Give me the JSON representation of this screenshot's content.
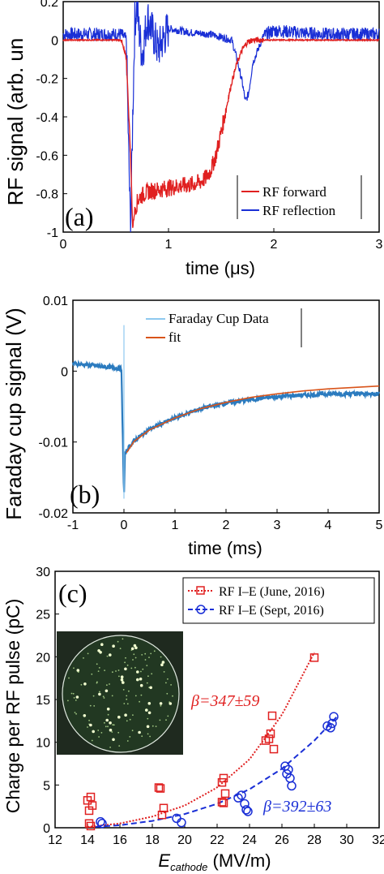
{
  "chart_data": [
    {
      "type": "line",
      "panel_label": "(a)",
      "ylabel": "RF signal (arb. un",
      "xlabel": "time (μs)",
      "xlim": [
        0,
        3
      ],
      "ylim": [
        -1,
        0.2
      ],
      "xticks": [
        "0",
        "1",
        "2",
        "3"
      ],
      "yticks": [
        "0.2",
        "0",
        "-0.2",
        "-0.4",
        "-0.6",
        "-0.8",
        "-1"
      ],
      "grid": false,
      "legend_position": "bottom-right",
      "series": [
        {
          "name": "RF forward",
          "color": "#e02020",
          "x": [
            0,
            0.55,
            0.6,
            0.64,
            0.66,
            0.68,
            0.72,
            0.8,
            0.9,
            1.0,
            1.1,
            1.2,
            1.3,
            1.35,
            1.4,
            1.45,
            1.5,
            1.55,
            1.6,
            1.65,
            1.7,
            1.75,
            1.8,
            1.9,
            2.0,
            3.0
          ],
          "y": [
            0,
            0,
            -0.1,
            -0.6,
            -0.98,
            -0.88,
            -0.82,
            -0.79,
            -0.78,
            -0.77,
            -0.76,
            -0.755,
            -0.74,
            -0.72,
            -0.68,
            -0.6,
            -0.48,
            -0.35,
            -0.22,
            -0.12,
            -0.05,
            -0.01,
            0,
            0,
            0,
            0
          ]
        },
        {
          "name": "RF reflection",
          "color": "#1a2fd6",
          "x": [
            0,
            0.55,
            0.6,
            0.62,
            0.64,
            0.66,
            0.68,
            0.7,
            0.72,
            0.75,
            0.8,
            0.9,
            1.0,
            1.2,
            1.4,
            1.6,
            1.65,
            1.7,
            1.73,
            1.76,
            1.8,
            1.9,
            2.0,
            2.2,
            2.5,
            3.0
          ],
          "y": [
            0.03,
            0.03,
            0.0,
            -0.55,
            -1.0,
            -0.4,
            0.1,
            0.18,
            0.05,
            -0.08,
            0.12,
            -0.05,
            0.06,
            0.04,
            0.03,
            0.0,
            -0.1,
            -0.22,
            -0.32,
            -0.28,
            -0.12,
            0.02,
            0.05,
            0.04,
            0.03,
            0.03
          ]
        }
      ]
    },
    {
      "type": "line",
      "panel_label": "(b)",
      "ylabel": "Faraday cup signal (V)",
      "xlabel": "time (ms)",
      "xlim": [
        -1,
        5
      ],
      "ylim": [
        -0.02,
        0.01
      ],
      "xticks": [
        "-1",
        "0",
        "1",
        "2",
        "3",
        "4",
        "5"
      ],
      "yticks": [
        "0.01",
        "0",
        "-0.01",
        "-0.02"
      ],
      "grid": false,
      "legend_position": "top-right",
      "series": [
        {
          "name": "Faraday Cup Data",
          "color": "#2b7bbf",
          "x": [
            -1,
            -0.5,
            -0.05,
            0,
            0.02,
            0.05,
            0.2,
            0.5,
            1.0,
            1.5,
            2.0,
            2.5,
            3.0,
            3.5,
            4.0,
            4.5,
            5.0
          ],
          "y": [
            0.0011,
            0.0007,
            0.0004,
            -0.018,
            -0.0118,
            -0.0112,
            -0.0098,
            -0.0082,
            -0.0066,
            -0.0053,
            -0.0045,
            -0.004,
            -0.0036,
            -0.0034,
            -0.0032,
            -0.0032,
            -0.0032
          ]
        },
        {
          "name": "fit",
          "color": "#d9541a",
          "x": [
            0.05,
            0.2,
            0.5,
            1.0,
            1.5,
            2.0,
            2.5,
            3.0,
            3.5,
            4.0,
            4.5,
            5.0
          ],
          "y": [
            -0.0115,
            -0.0099,
            -0.0083,
            -0.0066,
            -0.0053,
            -0.0044,
            -0.0037,
            -0.0032,
            -0.0028,
            -0.0025,
            -0.0023,
            -0.0021
          ]
        }
      ]
    },
    {
      "type": "scatter",
      "panel_label": "(c)",
      "ylabel": "Charge per RF pulse (pC)",
      "xlabel": "E",
      "xlabel_sub": "cathode",
      "xlabel_unit": " (MV/m)",
      "xlim": [
        12,
        32
      ],
      "ylim": [
        0,
        30
      ],
      "xticks": [
        "12",
        "14",
        "16",
        "18",
        "20",
        "22",
        "24",
        "26",
        "28",
        "30",
        "32"
      ],
      "yticks": [
        "0",
        "5",
        "10",
        "15",
        "20",
        "25",
        "30"
      ],
      "grid": false,
      "legend_position": "top-right",
      "annotations": [
        "β=347±59",
        "β=392±63"
      ],
      "series": [
        {
          "name": "RF I–E (June, 2016)",
          "color": "#e02020",
          "marker": "square",
          "x": [
            14.0,
            14.1,
            14.2,
            14.3,
            14.1,
            14.2,
            18.4,
            18.5,
            18.6,
            18.7,
            22.3,
            22.4,
            22.5,
            22.4,
            22.3,
            25.0,
            25.2,
            25.3,
            25.4,
            25.5,
            28.0
          ],
          "y": [
            3.2,
            2.0,
            3.6,
            2.6,
            0.5,
            0.2,
            4.7,
            4.6,
            1.5,
            2.3,
            5.3,
            5.8,
            4.0,
            2.9,
            3.0,
            10.2,
            10.4,
            11.0,
            13.1,
            9.2,
            19.9
          ],
          "fit_x": [
            14,
            16,
            18,
            20,
            22,
            24,
            26,
            28
          ],
          "fit_y": [
            0.1,
            0.5,
            1.3,
            2.6,
            4.7,
            8.0,
            13.2,
            20.5
          ]
        },
        {
          "name": "RF I–E (Sept, 2016)",
          "color": "#1a2fd6",
          "marker": "circle",
          "x": [
            14.8,
            14.9,
            19.5,
            19.8,
            23.3,
            23.5,
            23.7,
            23.8,
            23.9,
            26.2,
            26.4,
            26.5,
            26.6,
            26.3,
            28.8,
            29.0,
            29.1,
            29.2
          ],
          "y": [
            0.7,
            0.5,
            1.1,
            0.6,
            3.5,
            3.8,
            2.8,
            2.1,
            1.9,
            7.2,
            6.8,
            5.8,
            4.9,
            6.3,
            11.9,
            11.7,
            12.2,
            13.0
          ],
          "fit_x": [
            14.5,
            16,
            18,
            20,
            22,
            24,
            26,
            28,
            29.5
          ],
          "fit_y": [
            0.1,
            0.3,
            0.8,
            1.6,
            2.8,
            4.5,
            6.9,
            10.2,
            13.2
          ]
        }
      ]
    }
  ]
}
